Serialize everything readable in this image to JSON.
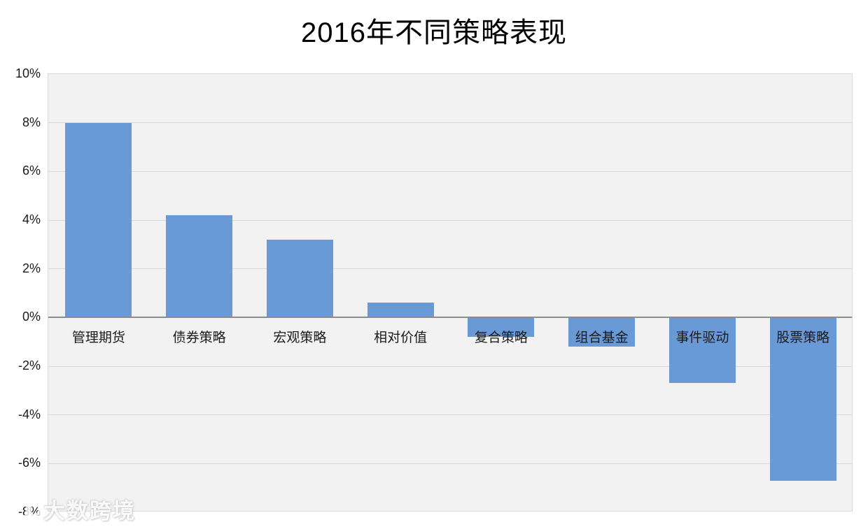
{
  "title": "2016年不同策略表现",
  "watermark": {
    "text": "大数跨境",
    "logo": "overlapping-circles-10-logo-icon"
  },
  "chart_data": {
    "type": "bar",
    "title": "2016年不同策略表现",
    "categories": [
      "管理期货",
      "债券策略",
      "宏观策略",
      "相对价值",
      "复合策略",
      "组合基金",
      "事件驱动",
      "股票策略"
    ],
    "values": [
      8.0,
      4.2,
      3.2,
      0.6,
      -0.8,
      -1.2,
      -2.7,
      -6.7
    ],
    "unit": "%",
    "xlabel": "",
    "ylabel": "",
    "ylim": [
      -8,
      10
    ],
    "ytick_step": 2,
    "ytick_labels": [
      "10%",
      "8%",
      "6%",
      "4%",
      "2%",
      "0%",
      "-2%",
      "-4%",
      "-6%",
      "-8%"
    ],
    "grid": true,
    "legend": "none",
    "bar_color": "#6a9ad5",
    "plot_bg_color": "#f2f2f2",
    "gridline_color": "#dadada",
    "axis_line_color": "#8c8c8c",
    "label_color": "#1a1a1a"
  }
}
